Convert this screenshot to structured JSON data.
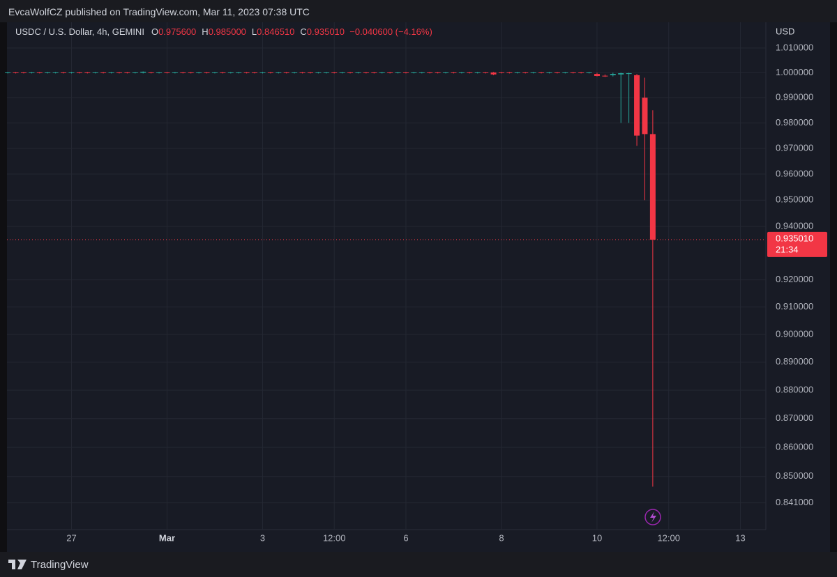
{
  "header": {
    "publisher": "EvcaWolfCZ published on TradingView.com, Mar 11, 2023 07:38 UTC"
  },
  "footer": {
    "brand": "TradingView"
  },
  "chart_data": {
    "type": "candlestick",
    "ohlc_legend": [
      {
        "label": "O",
        "value": "0.975600"
      },
      {
        "label": "H",
        "value": "0.985000"
      },
      {
        "label": "L",
        "value": "0.846510"
      },
      {
        "label": "C",
        "value": "0.935010"
      }
    ],
    "change": "−0.040600 (−4.16%)",
    "y_axis_label": "USD",
    "last_price_label": "0.935010",
    "countdown": "21:34",
    "up_color": "#26a69a",
    "down_color": "#f23645",
    "log_scale": true,
    "grid": true,
    "categories": [
      null,
      null,
      null,
      null,
      null,
      null,
      null,
      null,
      null,
      null,
      null,
      null,
      null,
      null,
      null,
      null,
      null,
      null,
      null,
      null,
      null,
      null,
      null,
      null,
      null,
      null,
      null,
      null,
      null,
      null,
      null,
      null,
      null,
      null,
      null,
      null,
      null,
      null,
      null,
      null,
      null,
      null,
      null,
      null,
      null,
      null,
      null,
      null,
      null,
      null,
      null,
      null,
      null,
      null,
      null,
      null,
      null,
      null,
      null,
      null,
      null,
      null,
      null,
      null,
      null,
      null,
      null,
      null,
      null,
      null,
      null,
      null,
      null,
      null,
      null,
      null,
      null,
      null,
      null,
      null,
      null,
      null
    ],
    "series": [
      {
        "name": "USDC / U.S. Dollar, 4h, GEMINI",
        "open": [
          0.9999,
          1.0001,
          1.0001,
          0.9999,
          1.0001,
          0.9999,
          0.9999,
          1.0001,
          0.9999,
          1.0001,
          1.0001,
          0.9999,
          1.0001,
          0.9999,
          1.0001,
          1.0001,
          0.9999,
          1.0,
          1.0001,
          0.9999,
          1.0001,
          0.9999,
          1.0001,
          1.0001,
          0.9999,
          1.0001,
          0.9999,
          1.0001,
          0.9999,
          0.9999,
          1.0001,
          1.0001,
          0.9999,
          1.0001,
          0.9999,
          1.0001,
          0.9999,
          1.0001,
          1.0001,
          0.9999,
          0.9999,
          1.0001,
          0.9999,
          1.0001,
          0.9999,
          1.0001,
          1.0001,
          0.9999,
          1.0001,
          0.9999,
          1.0001,
          0.9999,
          0.9999,
          1.0001,
          1.0001,
          0.9999,
          1.0001,
          0.9999,
          1.0001,
          0.9999,
          1.0001,
          1.0001,
          1.0001,
          1.0001,
          0.9999,
          1.0001,
          0.9999,
          1.0001,
          0.9999,
          1.0001,
          0.9999,
          1.0001,
          1.0001,
          0.9999,
          0.9995,
          0.9988,
          0.999,
          0.9993,
          0.9995,
          0.999,
          0.99,
          0.9756
        ],
        "high": [
          1.0003,
          1.0003,
          1.0003,
          1.0003,
          1.0003,
          1.0003,
          1.0003,
          1.0003,
          1.0003,
          1.0003,
          1.0003,
          1.0003,
          1.0003,
          1.0003,
          1.0003,
          1.0003,
          1.0003,
          1.0005,
          1.0003,
          1.0003,
          1.0003,
          1.0003,
          1.0003,
          1.0003,
          1.0003,
          1.0003,
          1.0003,
          1.0003,
          1.0003,
          1.0003,
          1.0003,
          1.0003,
          1.0003,
          1.0003,
          1.0003,
          1.0003,
          1.0003,
          1.0003,
          1.0003,
          1.0003,
          1.0003,
          1.0003,
          1.0003,
          1.0003,
          1.0003,
          1.0003,
          1.0003,
          1.0003,
          1.0003,
          1.0003,
          1.0003,
          1.0003,
          1.0003,
          1.0003,
          1.0003,
          1.0003,
          1.0003,
          1.0003,
          1.0003,
          1.0003,
          1.0003,
          1.0003,
          1.0003,
          1.0003,
          1.0003,
          1.0003,
          1.0003,
          1.0003,
          1.0003,
          1.0003,
          1.0003,
          1.0003,
          1.0003,
          1.0003,
          1.0,
          0.9993,
          1.0,
          1.0,
          1.0,
          0.9995,
          0.998,
          0.985
        ],
        "low": [
          0.9997,
          0.9997,
          0.9997,
          0.9997,
          0.9997,
          0.9997,
          0.9997,
          0.9997,
          0.9997,
          0.9997,
          0.9997,
          0.9997,
          0.9997,
          0.9997,
          0.9997,
          0.9997,
          0.9997,
          0.9997,
          0.9997,
          0.9997,
          0.9997,
          0.9997,
          0.9997,
          0.9997,
          0.9997,
          0.9997,
          0.9997,
          0.9997,
          0.9997,
          0.9997,
          0.9997,
          0.9997,
          0.9997,
          0.9997,
          0.9997,
          0.9997,
          0.9997,
          0.9997,
          0.9997,
          0.9997,
          0.9997,
          0.9997,
          0.9997,
          0.9997,
          0.9997,
          0.9997,
          0.9997,
          0.9997,
          0.9997,
          0.9997,
          0.9997,
          0.9997,
          0.9997,
          0.9997,
          0.9997,
          0.9997,
          0.9997,
          0.9997,
          0.9997,
          0.9997,
          0.9997,
          0.999,
          0.9997,
          0.9997,
          0.9997,
          0.9997,
          0.9997,
          0.9997,
          0.9997,
          0.9997,
          0.9997,
          0.9997,
          0.9997,
          0.9997,
          0.9985,
          0.9983,
          0.9985,
          0.98,
          0.98,
          0.971,
          0.95,
          0.84651
        ],
        "close": [
          1.0001,
          0.9999,
          0.9999,
          1.0001,
          0.9999,
          1.0001,
          1.0001,
          0.9999,
          1.0001,
          0.9999,
          0.9999,
          1.0001,
          0.9999,
          1.0001,
          0.9999,
          0.9999,
          1.0001,
          1.0004,
          0.9999,
          1.0001,
          0.9999,
          1.0001,
          0.9999,
          0.9999,
          1.0001,
          0.9999,
          1.0001,
          0.9999,
          1.0001,
          1.0001,
          0.9999,
          0.9999,
          1.0001,
          0.9999,
          1.0001,
          0.9999,
          1.0001,
          0.9999,
          0.9999,
          1.0001,
          1.0001,
          0.9999,
          1.0001,
          0.9999,
          1.0001,
          0.9999,
          0.9999,
          1.0001,
          0.9999,
          1.0001,
          0.9999,
          1.0001,
          1.0001,
          0.9999,
          0.9999,
          1.0001,
          0.9999,
          1.0001,
          0.9999,
          1.0001,
          0.9999,
          0.9993,
          0.9999,
          0.9999,
          1.0001,
          0.9999,
          1.0001,
          0.9999,
          1.0001,
          0.9999,
          1.0001,
          0.9999,
          0.9999,
          1.0001,
          0.9987,
          0.9985,
          0.9995,
          0.9998,
          0.9998,
          0.975,
          0.9756,
          0.93501
        ]
      }
    ],
    "xlim": [
      -0.1,
      95.2
    ],
    "xticks": [
      {
        "value": 8,
        "label": "27"
      },
      {
        "value": 20,
        "label": "Mar"
      },
      {
        "value": 32,
        "label": "3"
      },
      {
        "value": 41,
        "label": "12:00"
      },
      {
        "value": 50,
        "label": "6"
      },
      {
        "value": 62,
        "label": "8"
      },
      {
        "value": 74,
        "label": "10"
      },
      {
        "value": 83,
        "label": "12:00"
      },
      {
        "value": 92,
        "label": "13"
      }
    ],
    "ylim": [
      0.832,
      1.0205
    ],
    "yticks": [
      {
        "value": 1.01,
        "label": "1.010000"
      },
      {
        "value": 1.0,
        "label": "1.000000"
      },
      {
        "value": 0.99,
        "label": "0.990000"
      },
      {
        "value": 0.98,
        "label": "0.980000"
      },
      {
        "value": 0.97,
        "label": "0.970000"
      },
      {
        "value": 0.96,
        "label": "0.960000"
      },
      {
        "value": 0.95,
        "label": "0.950000"
      },
      {
        "value": 0.94,
        "label": "0.940000"
      },
      {
        "value": 0.92,
        "label": "0.920000"
      },
      {
        "value": 0.91,
        "label": "0.910000"
      },
      {
        "value": 0.9,
        "label": "0.900000"
      },
      {
        "value": 0.89,
        "label": "0.890000"
      },
      {
        "value": 0.88,
        "label": "0.880000"
      },
      {
        "value": 0.87,
        "label": "0.870000"
      },
      {
        "value": 0.86,
        "label": "0.860000"
      },
      {
        "value": 0.85,
        "label": "0.850000"
      },
      {
        "value": 0.841,
        "label": "0.841000"
      }
    ]
  }
}
